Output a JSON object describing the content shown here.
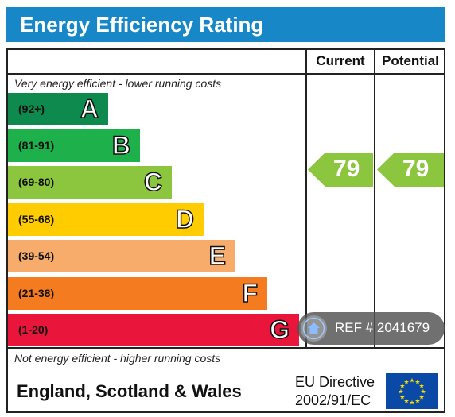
{
  "header": {
    "title": "Energy Efficiency Rating"
  },
  "columns": {
    "current": "Current",
    "potential": "Potential"
  },
  "captions": {
    "top": "Very energy efficient - lower running costs",
    "bottom": "Not energy efficient - higher running costs"
  },
  "bands": [
    {
      "range": "(92+)",
      "letter": "A",
      "color": "#0e8a4f"
    },
    {
      "range": "(81-91)",
      "letter": "B",
      "color": "#1eb04b"
    },
    {
      "range": "(69-80)",
      "letter": "C",
      "color": "#8cc63f"
    },
    {
      "range": "(55-68)",
      "letter": "D",
      "color": "#ffcc00"
    },
    {
      "range": "(39-54)",
      "letter": "E",
      "color": "#f7ac6b"
    },
    {
      "range": "(21-38)",
      "letter": "F",
      "color": "#f47b20"
    },
    {
      "range": "(1-20)",
      "letter": "G",
      "color": "#e9153b"
    }
  ],
  "ratings": {
    "current": "79",
    "potential": "79",
    "arrow_color": "#8cc63f"
  },
  "footer": {
    "region": "England, Scotland & Wales",
    "directive_line1": "EU Directive",
    "directive_line2": "2002/91/EC",
    "flag_icon": "eu-flag-icon"
  },
  "watermark": {
    "text": "REF # 2041679",
    "icon": "home-icon"
  }
}
